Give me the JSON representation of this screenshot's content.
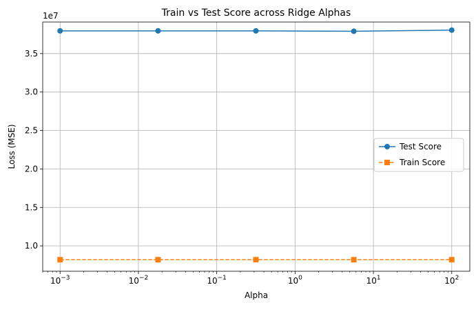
{
  "chart_data": {
    "type": "line",
    "title": "Train vs Test Score across Ridge Alphas",
    "xlabel": "Alpha",
    "ylabel": "Loss (MSE)",
    "y_offset_label": "1e7",
    "xscale": "log",
    "xlim": [
      0.0006,
      170
    ],
    "ylim": [
      0.67,
      3.91
    ],
    "grid": true,
    "legend_position": "center-right",
    "x": [
      0.001,
      0.0178,
      0.316,
      5.62,
      100
    ],
    "x_ticks": [
      {
        "value": 0.001,
        "base": "10",
        "exp": "−3"
      },
      {
        "value": 0.01,
        "base": "10",
        "exp": "−2"
      },
      {
        "value": 0.1,
        "base": "10",
        "exp": "−1"
      },
      {
        "value": 1,
        "base": "10",
        "exp": "0"
      },
      {
        "value": 10,
        "base": "10",
        "exp": "1"
      },
      {
        "value": 100,
        "base": "10",
        "exp": "2"
      }
    ],
    "y_ticks": [
      {
        "value": 1.0,
        "label": "1.0"
      },
      {
        "value": 1.5,
        "label": "1.5"
      },
      {
        "value": 2.0,
        "label": "2.0"
      },
      {
        "value": 2.5,
        "label": "2.5"
      },
      {
        "value": 3.0,
        "label": "3.0"
      },
      {
        "value": 3.5,
        "label": "3.5"
      }
    ],
    "series": [
      {
        "name": "Test Score",
        "values": [
          3.795,
          3.795,
          3.795,
          3.79,
          3.805
        ],
        "color": "#1f77b4",
        "marker": "circle",
        "line": "solid"
      },
      {
        "name": "Train Score",
        "values": [
          0.82,
          0.82,
          0.82,
          0.82,
          0.82
        ],
        "color": "#ff7f0e",
        "marker": "square",
        "line": "dashed"
      }
    ]
  }
}
